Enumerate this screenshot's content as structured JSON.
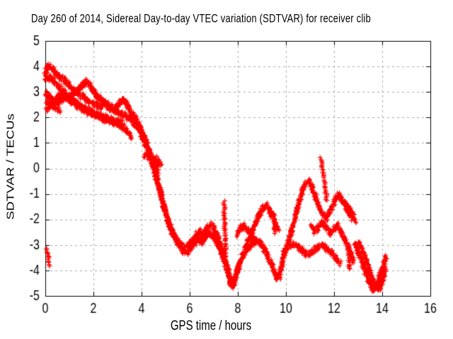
{
  "page": {
    "background": "#ffffff"
  },
  "chart_data": {
    "type": "scatter",
    "title": "Day 260 of 2014, Sidereal Day-to-day VTEC variation (SDTVAR) for receiver clib",
    "xlabel": "GPS time / hours",
    "ylabel": "SDTVAR / TECUs",
    "xlim": [
      0,
      16
    ],
    "ylim": [
      -5,
      5
    ],
    "x_ticks": [
      0,
      2,
      4,
      6,
      8,
      10,
      12,
      14,
      16
    ],
    "y_ticks": [
      -5,
      -4,
      -3,
      -2,
      -1,
      0,
      1,
      2,
      3,
      4,
      5
    ],
    "grid": true,
    "legend": "none",
    "marker": "plus",
    "series_color": "#ff0000",
    "grid_color": "#a8a8a8",
    "axis_color": "#000000",
    "series": [
      {
        "name": "trace-1",
        "points": [
          [
            0,
            3.7
          ],
          [
            0.08,
            3.95
          ],
          [
            0.15,
            4.02
          ],
          [
            0.3,
            3.88
          ],
          [
            0.45,
            3.72
          ],
          [
            0.6,
            3.6
          ],
          [
            0.8,
            3.45
          ],
          [
            1.0,
            3.27
          ],
          [
            1.2,
            3.08
          ],
          [
            1.4,
            2.92
          ],
          [
            1.6,
            2.78
          ],
          [
            1.8,
            2.65
          ],
          [
            2.0,
            2.55
          ],
          [
            2.15,
            2.48
          ],
          [
            2.3,
            2.42
          ],
          [
            2.45,
            2.55
          ],
          [
            2.6,
            2.42
          ],
          [
            2.75,
            2.32
          ],
          [
            2.95,
            2.22
          ],
          [
            3.15,
            2.15
          ],
          [
            3.35,
            2.08
          ]
        ]
      },
      {
        "name": "trace-2",
        "points": [
          [
            0,
            3.5
          ],
          [
            0.2,
            3.55
          ],
          [
            0.35,
            3.42
          ],
          [
            0.55,
            3.22
          ],
          [
            0.75,
            3.02
          ],
          [
            0.95,
            2.85
          ],
          [
            1.15,
            2.68
          ],
          [
            1.35,
            2.52
          ],
          [
            1.55,
            2.4
          ],
          [
            1.75,
            2.3
          ],
          [
            1.95,
            2.2
          ],
          [
            2.15,
            2.12
          ],
          [
            2.35,
            2.05
          ],
          [
            2.6,
            1.97
          ],
          [
            2.85,
            1.9
          ],
          [
            3.05,
            1.84
          ],
          [
            3.25,
            1.78
          ]
        ]
      },
      {
        "name": "trace-3",
        "points": [
          [
            0,
            2.95
          ],
          [
            0.15,
            2.82
          ],
          [
            0.3,
            2.68
          ],
          [
            0.5,
            2.55
          ],
          [
            0.65,
            2.68
          ],
          [
            0.8,
            2.8
          ],
          [
            0.95,
            2.7
          ],
          [
            1.1,
            2.6
          ],
          [
            1.3,
            2.47
          ],
          [
            1.55,
            2.33
          ],
          [
            1.8,
            2.2
          ],
          [
            2.05,
            2.1
          ],
          [
            2.3,
            2.0
          ],
          [
            2.55,
            1.9
          ],
          [
            2.8,
            1.8
          ],
          [
            3.05,
            1.7
          ],
          [
            3.25,
            1.58
          ],
          [
            3.45,
            1.4
          ],
          [
            3.6,
            1.22
          ]
        ]
      },
      {
        "name": "trace-cross",
        "points": [
          [
            0.05,
            2.32
          ],
          [
            0.2,
            2.45
          ],
          [
            0.38,
            2.62
          ],
          [
            0.55,
            2.82
          ],
          [
            0.68,
            2.92
          ],
          [
            0.8,
            2.85
          ]
        ]
      },
      {
        "name": "trace-cross2",
        "points": [
          [
            0.05,
            2.62
          ],
          [
            0.25,
            2.5
          ],
          [
            0.45,
            2.38
          ],
          [
            0.6,
            2.3
          ]
        ]
      },
      {
        "name": "trace-bump",
        "points": [
          [
            1.05,
            2.85
          ],
          [
            1.2,
            2.95
          ],
          [
            1.35,
            3.08
          ],
          [
            1.5,
            3.22
          ],
          [
            1.62,
            3.35
          ],
          [
            1.72,
            3.4
          ],
          [
            1.85,
            3.28
          ],
          [
            1.95,
            3.1
          ],
          [
            2.1,
            2.9
          ],
          [
            2.25,
            2.75
          ],
          [
            2.45,
            2.6
          ],
          [
            2.65,
            2.47
          ],
          [
            2.85,
            2.36
          ],
          [
            3.0,
            2.45
          ],
          [
            3.1,
            2.58
          ],
          [
            3.2,
            2.68
          ],
          [
            3.32,
            2.6
          ],
          [
            3.45,
            2.4
          ],
          [
            3.58,
            2.18
          ],
          [
            3.7,
            1.98
          ],
          [
            3.82,
            1.82
          ]
        ]
      },
      {
        "name": "trace-main",
        "points": [
          [
            3.4,
            2.02
          ],
          [
            3.55,
            1.92
          ],
          [
            3.7,
            1.78
          ],
          [
            3.85,
            1.58
          ],
          [
            4.0,
            1.3
          ],
          [
            4.15,
            0.98
          ],
          [
            4.3,
            0.6
          ],
          [
            4.45,
            0.15
          ],
          [
            4.6,
            -0.35
          ],
          [
            4.75,
            -0.85
          ],
          [
            4.9,
            -1.4
          ],
          [
            5.05,
            -1.9
          ],
          [
            5.2,
            -2.32
          ],
          [
            5.35,
            -2.65
          ],
          [
            5.5,
            -2.88
          ],
          [
            5.65,
            -3.02
          ],
          [
            5.8,
            -3.1
          ],
          [
            5.95,
            -3.05
          ],
          [
            6.1,
            -2.88
          ],
          [
            6.25,
            -2.65
          ],
          [
            6.4,
            -2.48
          ],
          [
            6.5,
            -2.62
          ],
          [
            6.62,
            -2.5
          ],
          [
            6.75,
            -2.32
          ],
          [
            6.9,
            -2.2
          ],
          [
            7.0,
            -2.32
          ],
          [
            7.12,
            -2.55
          ],
          [
            7.25,
            -2.9
          ],
          [
            7.4,
            -3.3
          ],
          [
            7.52,
            -3.7
          ],
          [
            7.62,
            -4.1
          ],
          [
            7.7,
            -4.45
          ],
          [
            7.78,
            -4.6
          ],
          [
            7.85,
            -4.4
          ],
          [
            7.95,
            -4.05
          ],
          [
            8.08,
            -3.7
          ],
          [
            8.22,
            -3.42
          ],
          [
            8.4,
            -3.18
          ],
          [
            8.6,
            -2.98
          ],
          [
            8.8,
            -2.82
          ],
          [
            8.95,
            -2.95
          ],
          [
            9.1,
            -3.15
          ],
          [
            9.25,
            -3.42
          ],
          [
            9.4,
            -3.75
          ],
          [
            9.52,
            -4.08
          ],
          [
            9.62,
            -4.32
          ],
          [
            9.72,
            -4.25
          ],
          [
            9.82,
            -3.8
          ],
          [
            9.95,
            -3.3
          ],
          [
            10.1,
            -2.85
          ],
          [
            10.25,
            -2.4
          ],
          [
            10.4,
            -1.85
          ],
          [
            10.55,
            -1.3
          ],
          [
            10.7,
            -0.85
          ],
          [
            10.82,
            -0.6
          ],
          [
            10.95,
            -0.52
          ],
          [
            11.08,
            -0.72
          ],
          [
            11.22,
            -1.1
          ],
          [
            11.38,
            -1.5
          ],
          [
            11.52,
            -1.78
          ],
          [
            11.65,
            -1.95
          ],
          [
            11.78,
            -1.82
          ],
          [
            11.92,
            -1.5
          ],
          [
            12.05,
            -1.22
          ],
          [
            12.18,
            -1.02
          ],
          [
            12.32,
            -1.22
          ],
          [
            12.48,
            -1.5
          ],
          [
            12.62,
            -1.78
          ],
          [
            12.75,
            -1.95
          ]
        ]
      },
      {
        "name": "trace-steep2",
        "points": [
          [
            3.6,
            2.1
          ],
          [
            3.75,
            1.95
          ],
          [
            3.9,
            1.7
          ],
          [
            4.05,
            1.35
          ],
          [
            4.2,
            1.0
          ],
          [
            4.35,
            0.6
          ],
          [
            4.5,
            0.1
          ],
          [
            4.65,
            -0.45
          ],
          [
            4.8,
            -1.0
          ],
          [
            4.95,
            -1.55
          ],
          [
            5.1,
            -2.05
          ],
          [
            5.25,
            -2.45
          ],
          [
            5.45,
            -2.8
          ],
          [
            5.65,
            -3.05
          ]
        ]
      },
      {
        "name": "trace-branch",
        "points": [
          [
            4.12,
            0.52
          ],
          [
            4.3,
            0.44
          ],
          [
            4.5,
            0.36
          ],
          [
            4.68,
            0.28
          ],
          [
            4.8,
            0.2
          ]
        ]
      },
      {
        "name": "trace-valley2",
        "points": [
          [
            5.6,
            -3.1
          ],
          [
            5.75,
            -3.25
          ],
          [
            5.9,
            -3.3
          ],
          [
            6.05,
            -3.12
          ],
          [
            6.2,
            -2.95
          ],
          [
            6.35,
            -2.78
          ],
          [
            6.5,
            -2.9
          ],
          [
            6.65,
            -2.72
          ],
          [
            6.8,
            -2.55
          ],
          [
            6.95,
            -2.65
          ],
          [
            7.1,
            -2.85
          ],
          [
            7.25,
            -3.15
          ],
          [
            7.4,
            -3.55
          ],
          [
            7.55,
            -3.95
          ],
          [
            7.65,
            -4.3
          ],
          [
            7.72,
            -4.55
          ],
          [
            7.82,
            -4.5
          ],
          [
            7.92,
            -4.2
          ],
          [
            8.05,
            -3.85
          ]
        ]
      },
      {
        "name": "trace-zig8",
        "points": [
          [
            7.95,
            -2.6
          ],
          [
            8.1,
            -2.35
          ],
          [
            8.25,
            -2.25
          ],
          [
            8.4,
            -2.4
          ],
          [
            8.55,
            -2.6
          ],
          [
            8.7,
            -2.8
          ]
        ]
      },
      {
        "name": "trace-hill9",
        "points": [
          [
            8.3,
            -3.15
          ],
          [
            8.45,
            -2.8
          ],
          [
            8.6,
            -2.45
          ],
          [
            8.75,
            -2.1
          ],
          [
            8.9,
            -1.8
          ],
          [
            9.05,
            -1.55
          ],
          [
            9.18,
            -1.45
          ],
          [
            9.3,
            -1.6
          ],
          [
            9.42,
            -1.85
          ],
          [
            9.55,
            -2.15
          ],
          [
            9.68,
            -2.4
          ]
        ]
      },
      {
        "name": "trace-lowband",
        "points": [
          [
            9.9,
            -3.25
          ],
          [
            10.1,
            -3.05
          ],
          [
            10.3,
            -2.98
          ],
          [
            10.5,
            -3.08
          ],
          [
            10.7,
            -3.22
          ],
          [
            10.9,
            -3.38
          ],
          [
            11.1,
            -3.28
          ],
          [
            11.3,
            -3.12
          ],
          [
            11.5,
            -3.0
          ],
          [
            11.7,
            -3.15
          ],
          [
            11.9,
            -3.32
          ],
          [
            12.1,
            -3.52
          ],
          [
            12.25,
            -3.72
          ]
        ]
      },
      {
        "name": "trace-zig11",
        "points": [
          [
            11.05,
            -2.25
          ],
          [
            11.2,
            -2.45
          ],
          [
            11.35,
            -2.3
          ],
          [
            11.5,
            -2.12
          ],
          [
            11.68,
            -2.3
          ],
          [
            11.85,
            -2.52
          ],
          [
            12.0,
            -2.38
          ],
          [
            12.15,
            -2.25
          ],
          [
            12.3,
            -2.5
          ],
          [
            12.45,
            -2.78
          ],
          [
            12.6,
            -3.1
          ],
          [
            12.72,
            -3.4
          ],
          [
            12.82,
            -3.68
          ]
        ]
      },
      {
        "name": "trace-arc12",
        "points": [
          [
            12.38,
            -1.28
          ],
          [
            12.52,
            -1.42
          ],
          [
            12.65,
            -1.62
          ],
          [
            12.78,
            -1.85
          ],
          [
            12.88,
            -2.05
          ]
        ]
      },
      {
        "name": "trace-final-v1",
        "points": [
          [
            12.88,
            -2.95
          ],
          [
            13.02,
            -3.3
          ],
          [
            13.16,
            -3.68
          ],
          [
            13.3,
            -4.05
          ],
          [
            13.44,
            -4.4
          ],
          [
            13.56,
            -4.65
          ],
          [
            13.66,
            -4.75
          ],
          [
            13.76,
            -4.6
          ],
          [
            13.88,
            -4.3
          ],
          [
            14.0,
            -3.95
          ],
          [
            14.1,
            -3.65
          ],
          [
            14.18,
            -3.5
          ]
        ]
      },
      {
        "name": "trace-final-v2",
        "points": [
          [
            13.05,
            -2.9
          ],
          [
            13.2,
            -3.25
          ],
          [
            13.35,
            -3.65
          ],
          [
            13.5,
            -4.05
          ],
          [
            13.65,
            -4.42
          ],
          [
            13.78,
            -4.68
          ],
          [
            13.88,
            -4.72
          ],
          [
            13.98,
            -4.5
          ],
          [
            14.08,
            -4.2
          ],
          [
            14.16,
            -3.95
          ]
        ]
      }
    ],
    "streaks": [
      {
        "name": "streak-0h",
        "x1": 0.08,
        "x2": 0.18,
        "y1": -3.15,
        "y2": -3.8
      },
      {
        "name": "streak-4.6h",
        "x1": 4.6,
        "x2": 4.68,
        "y1": 0.45,
        "y2": -0.3
      },
      {
        "name": "streak-7.5h",
        "x1": 7.42,
        "x2": 7.5,
        "y1": -1.3,
        "y2": -3.5
      },
      {
        "name": "streak-9.5h",
        "x1": 9.5,
        "x2": 9.55,
        "y1": -1.75,
        "y2": -2.55
      },
      {
        "name": "streak-11.5h",
        "x1": 11.45,
        "x2": 11.7,
        "y1": 0.4,
        "y2": -1.25
      },
      {
        "name": "streak-12.6h",
        "x1": 12.58,
        "x2": 12.65,
        "y1": -3.05,
        "y2": -3.95
      }
    ]
  }
}
